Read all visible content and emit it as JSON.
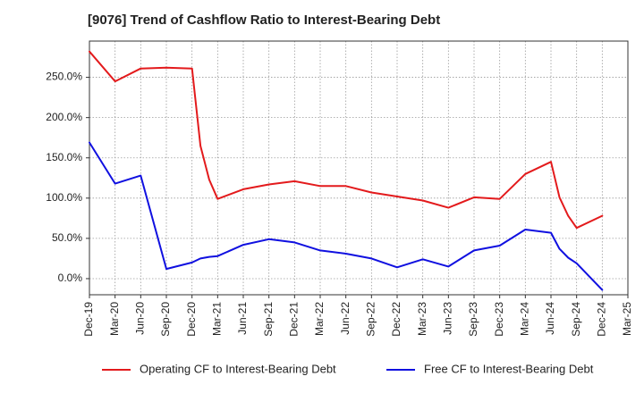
{
  "chart_data": {
    "type": "line",
    "title": "[9076]  Trend of Cashflow Ratio to Interest-Bearing Debt",
    "xlabel": "",
    "ylabel": "",
    "x_tick_labels": [
      "Dec-19",
      "Mar-20",
      "Jun-20",
      "Sep-20",
      "Dec-20",
      "Mar-21",
      "Jun-21",
      "Sep-21",
      "Dec-21",
      "Mar-22",
      "Jun-22",
      "Sep-22",
      "Dec-22",
      "Mar-23",
      "Jun-23",
      "Sep-23",
      "Dec-23",
      "Mar-24",
      "Jun-24",
      "Sep-24",
      "Dec-24",
      "Mar-25"
    ],
    "y_tick_labels": [
      "0.0%",
      "50.0%",
      "100.0%",
      "150.0%",
      "200.0%",
      "250.0%"
    ],
    "y_ticks": [
      0,
      50,
      100,
      150,
      200,
      250
    ],
    "ylim": [
      -20,
      295
    ],
    "xlim": [
      0,
      21
    ],
    "grid": true,
    "legend_position": "bottom",
    "series": [
      {
        "name": "Operating CF to Interest-Bearing Debt",
        "color": "#e31a1c",
        "points": [
          [
            0,
            282
          ],
          [
            1,
            245
          ],
          [
            2,
            261
          ],
          [
            3,
            262
          ],
          [
            4,
            261
          ],
          [
            4.33,
            165
          ],
          [
            4.67,
            123
          ],
          [
            5,
            99
          ],
          [
            6,
            111
          ],
          [
            7,
            117
          ],
          [
            8,
            121
          ],
          [
            9,
            115
          ],
          [
            10,
            115
          ],
          [
            11,
            107
          ],
          [
            12,
            102
          ],
          [
            13,
            97
          ],
          [
            14,
            88
          ],
          [
            15,
            101
          ],
          [
            16,
            99
          ],
          [
            17,
            130
          ],
          [
            18,
            145
          ],
          [
            18.33,
            101
          ],
          [
            18.67,
            78
          ],
          [
            19,
            63
          ],
          [
            20,
            78
          ]
        ]
      },
      {
        "name": "Free CF to Interest-Bearing Debt",
        "color": "#1010e0",
        "points": [
          [
            0,
            169
          ],
          [
            1,
            118
          ],
          [
            2,
            128
          ],
          [
            3,
            12
          ],
          [
            4,
            20
          ],
          [
            4.33,
            25
          ],
          [
            4.67,
            27
          ],
          [
            5,
            28
          ],
          [
            6,
            42
          ],
          [
            7,
            49
          ],
          [
            8,
            45
          ],
          [
            9,
            35
          ],
          [
            10,
            31
          ],
          [
            11,
            25
          ],
          [
            12,
            14
          ],
          [
            13,
            24
          ],
          [
            14,
            15
          ],
          [
            15,
            35
          ],
          [
            16,
            41
          ],
          [
            17,
            61
          ],
          [
            18,
            57
          ],
          [
            18.33,
            37
          ],
          [
            18.67,
            26
          ],
          [
            19,
            19
          ],
          [
            20,
            -14
          ]
        ]
      }
    ]
  }
}
